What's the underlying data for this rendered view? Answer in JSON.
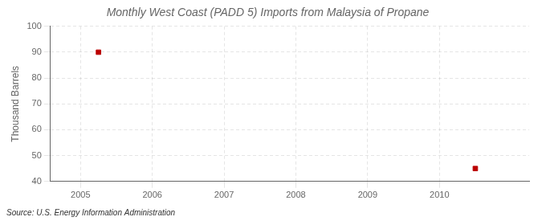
{
  "chart_data": {
    "type": "scatter",
    "title": "Monthly West Coast (PADD 5) Imports from Malaysia of Propane",
    "ylabel": "Thousand Barrels",
    "annotation": "Source: U.S. Energy Information Administration",
    "x": [
      2005.25,
      2010.5
    ],
    "values": [
      90,
      45
    ],
    "color": "#bb0000",
    "marker": "square",
    "xlim": [
      2004.58,
      2011.25
    ],
    "xticks": [
      2005,
      2006,
      2007,
      2008,
      2009,
      2010
    ],
    "ylim": [
      40,
      100
    ],
    "yticks": [
      40,
      50,
      60,
      70,
      80,
      90,
      100
    ],
    "grid": true
  }
}
